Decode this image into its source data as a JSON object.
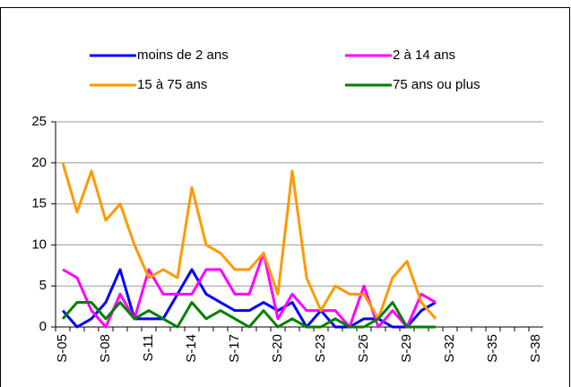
{
  "chart_data": {
    "type": "line",
    "categories": [
      "S-05",
      null,
      null,
      "S-08",
      null,
      null,
      "S-11",
      null,
      null,
      "S-14",
      null,
      null,
      "S-17",
      null,
      null,
      "S-20",
      null,
      null,
      "S-23",
      null,
      null,
      "S-26",
      null,
      null,
      "S-29",
      null,
      null,
      "S-32",
      null,
      null,
      "S-35",
      null,
      null,
      "S-38"
    ],
    "series": [
      {
        "name": "moins de 2 ans",
        "color": "#0000ff",
        "values": [
          2,
          0,
          1,
          3,
          7,
          1,
          1,
          1,
          4,
          7,
          4,
          3,
          2,
          2,
          3,
          2,
          3,
          0,
          2,
          0,
          0,
          1,
          1,
          0,
          0,
          2,
          3,
          null,
          null,
          null,
          null,
          null,
          null,
          null
        ]
      },
      {
        "name": "2 à 14 ans",
        "color": "#ff00ff",
        "values": [
          7,
          6,
          2,
          0,
          4,
          1,
          7,
          4,
          4,
          4,
          7,
          7,
          4,
          4,
          9,
          1,
          4,
          2,
          2,
          2,
          0,
          5,
          0,
          2,
          0,
          4,
          3,
          null,
          null,
          null,
          null,
          null,
          null,
          null
        ]
      },
      {
        "name": "15 à 75 ans",
        "color": "#ff9900",
        "values": [
          20,
          14,
          19,
          13,
          15,
          10,
          6,
          7,
          6,
          17,
          10,
          9,
          7,
          7,
          9,
          4,
          19,
          6,
          2,
          5,
          4,
          4,
          1,
          6,
          8,
          3,
          1,
          null,
          null,
          null,
          null,
          null,
          null,
          null
        ]
      },
      {
        "name": "75 ans ou plus",
        "color": "#008000",
        "values": [
          1,
          3,
          3,
          1,
          3,
          1,
          2,
          1,
          0,
          3,
          1,
          2,
          1,
          0,
          2,
          0,
          1,
          0,
          0,
          1,
          0,
          0,
          1,
          3,
          0,
          0,
          0,
          null,
          null,
          null,
          null,
          null,
          null,
          null
        ]
      }
    ],
    "ylim": [
      0,
      25
    ],
    "yticks": [
      0,
      5,
      10,
      15,
      20,
      25
    ],
    "grid": true,
    "legend": "top"
  }
}
